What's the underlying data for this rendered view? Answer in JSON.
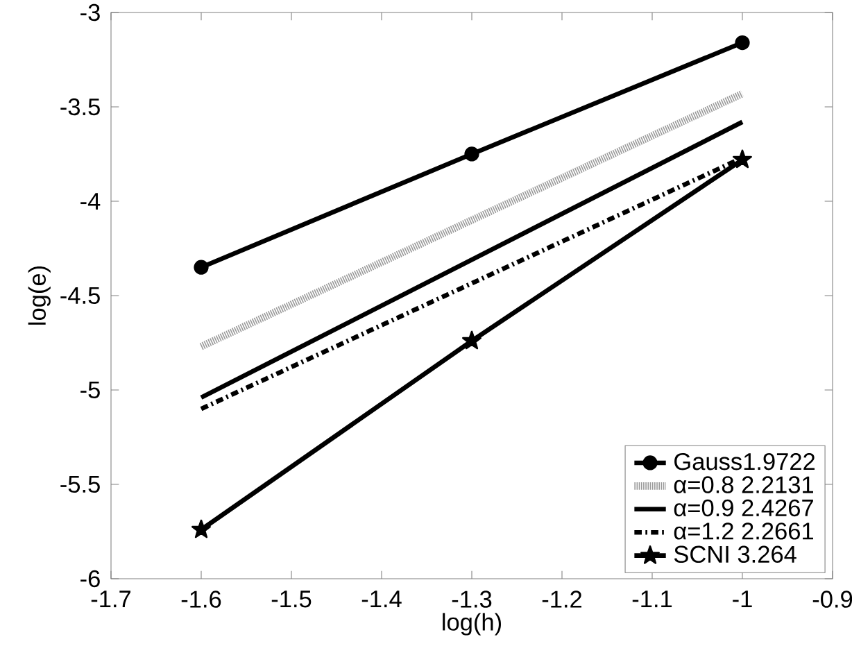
{
  "chart_data": {
    "type": "line",
    "xlabel": "log(h)",
    "ylabel": "log(e)",
    "xlim": [
      -1.7,
      -0.9
    ],
    "ylim": [
      -6,
      -3
    ],
    "xticks": [
      -1.7,
      -1.6,
      -1.5,
      -1.4,
      -1.3,
      -1.2,
      -1.1,
      -1,
      -0.9
    ],
    "yticks": [
      -6,
      -5.5,
      -5,
      -4.5,
      -4,
      -3.5,
      -3
    ],
    "legend": "bottom right",
    "grid": false,
    "series": [
      {
        "name": "Gauss1.9722",
        "color": "#000000",
        "x": [
          -1.6,
          -1.3,
          -1
        ],
        "values": [
          -4.35,
          -3.75,
          -3.16
        ],
        "marker": "circle",
        "line_style": "solid"
      },
      {
        "name": "α=0.8 2.2131",
        "color": "#999999",
        "x": [
          -1.6,
          -1
        ],
        "values": [
          -4.77,
          -3.43
        ],
        "marker": "none",
        "line_style": "dotted"
      },
      {
        "name": "α=0.9 2.4267",
        "color": "#000000",
        "x": [
          -1.6,
          -1
        ],
        "values": [
          -5.04,
          -3.58
        ],
        "marker": "none",
        "line_style": "solid"
      },
      {
        "name": "α=1.2 2.2661",
        "color": "#000000",
        "x": [
          -1.6,
          -1
        ],
        "values": [
          -5.1,
          -3.77
        ],
        "marker": "none",
        "line_style": "dashed"
      },
      {
        "name": "SCNI 3.264",
        "color": "#000000",
        "x": [
          -1.6,
          -1.3,
          -1
        ],
        "values": [
          -5.74,
          -4.74,
          -3.78
        ],
        "marker": "star",
        "line_style": "solid"
      }
    ]
  }
}
